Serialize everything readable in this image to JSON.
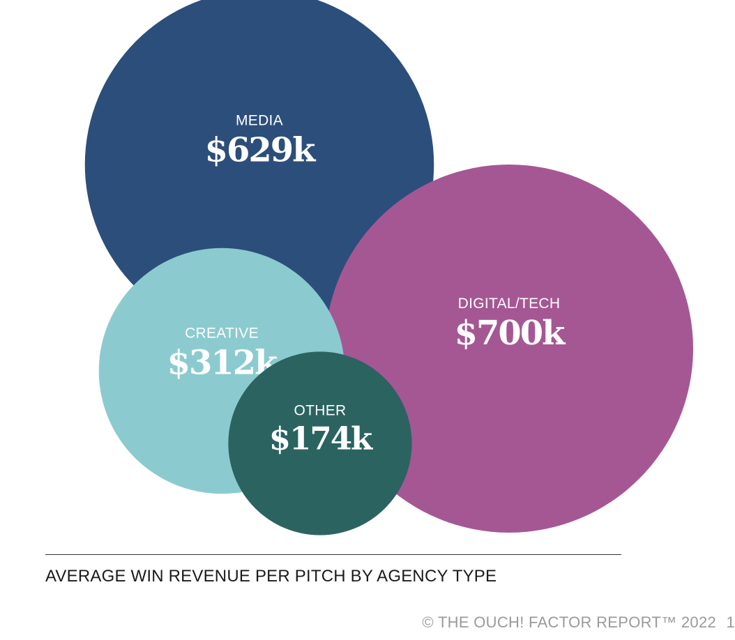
{
  "chart_data": {
    "type": "bubble",
    "title": "AVERAGE WIN REVENUE PER PITCH BY AGENCY TYPE",
    "bubbles": [
      {
        "category": "MEDIA",
        "value": 629,
        "display": "$629k",
        "color": "#2c4e7a"
      },
      {
        "category": "DIGITAL/TECH",
        "value": 700,
        "display": "$700k",
        "color": "#a55794"
      },
      {
        "category": "CREATIVE",
        "value": 312,
        "display": "$312k",
        "color": "#8bcbcf"
      },
      {
        "category": "OTHER",
        "value": 174,
        "display": "$174k",
        "color": "#2b6361"
      }
    ]
  },
  "footer": {
    "copyright": "© THE OUCH! FACTOR REPORT™ 2022",
    "page_number": "1"
  }
}
